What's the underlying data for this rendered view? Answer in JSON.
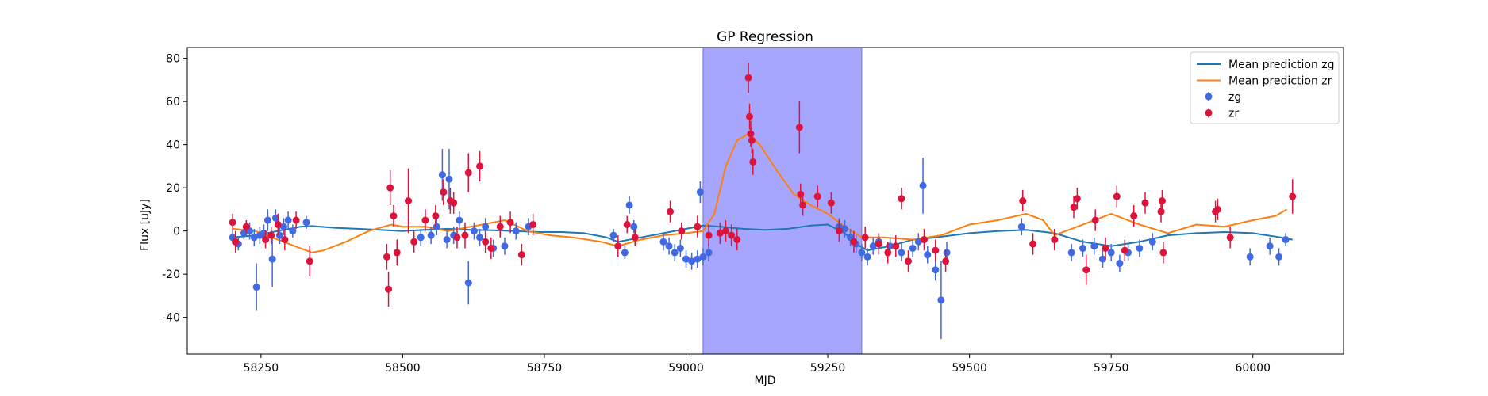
{
  "chart_data": {
    "type": "scatter",
    "title": "GP Regression",
    "xlabel": "MJD",
    "ylabel": "Flux [uJy]",
    "xlim": [
      58120,
      60160
    ],
    "ylim": [
      -57,
      85
    ],
    "xticks": [
      58250,
      58500,
      58750,
      59000,
      59250,
      59500,
      59750,
      60000
    ],
    "yticks": [
      -40,
      -20,
      0,
      20,
      40,
      60,
      80
    ],
    "grid": false,
    "legend_position": "top-right",
    "shaded_region": {
      "x_start": 59030,
      "x_end": 59310,
      "color": "#a6a6ff"
    },
    "colors": {
      "zg_line": "#1f77b4",
      "zr_line": "#ff7f0e",
      "zg_points": "#4169e1",
      "zr_points": "#dc143c"
    },
    "legend": [
      {
        "label": "Mean prediction zg",
        "kind": "line",
        "color": "#1f77b4"
      },
      {
        "label": "Mean prediction zr",
        "kind": "line",
        "color": "#ff7f0e"
      },
      {
        "label": "zg",
        "kind": "point",
        "color": "#4169e1"
      },
      {
        "label": "zr",
        "kind": "point",
        "color": "#dc143c"
      }
    ],
    "series": [
      {
        "name": "Mean prediction zg",
        "type": "line",
        "x": [
          58200,
          58240,
          58280,
          58320,
          58340,
          58380,
          58420,
          58460,
          58500,
          58540,
          58580,
          58620,
          58660,
          58700,
          58740,
          58780,
          58820,
          58860,
          58880,
          58920,
          58960,
          59000,
          59030,
          59060,
          59100,
          59140,
          59180,
          59220,
          59250,
          59280,
          59300,
          59320,
          59360,
          59400,
          59440,
          59470,
          59500,
          59550,
          59600,
          59650,
          59700,
          59750,
          59800,
          59850,
          59900,
          59950,
          60000,
          60050,
          60070
        ],
        "y": [
          -3,
          -2,
          0,
          2,
          2.3,
          1.5,
          1,
          0.5,
          0,
          0.5,
          1,
          0.5,
          0.3,
          0,
          -0.5,
          -0.5,
          -1,
          -3,
          -5,
          -3,
          -1,
          1,
          2.5,
          2,
          1,
          0.5,
          1,
          2.5,
          3,
          -1,
          -6,
          -9,
          -7,
          -4,
          -3,
          -2,
          -1,
          0,
          0.5,
          -1,
          -5,
          -7,
          -5,
          -2,
          -1,
          -0.5,
          -1,
          -3,
          -4
        ],
        "error_bars": false
      },
      {
        "name": "Mean prediction zr",
        "type": "line",
        "x": [
          58200,
          58240,
          58280,
          58320,
          58340,
          58360,
          58400,
          58440,
          58480,
          58500,
          58540,
          58580,
          58620,
          58660,
          58680,
          58720,
          58760,
          58800,
          58850,
          58880,
          58920,
          58960,
          59000,
          59030,
          59050,
          59070,
          59090,
          59110,
          59130,
          59160,
          59190,
          59220,
          59250,
          59280,
          59310,
          59350,
          59400,
          59450,
          59500,
          59550,
          59600,
          59630,
          59650,
          59700,
          59750,
          59800,
          59850,
          59900,
          59950,
          60000,
          60040,
          60060
        ],
        "y": [
          1,
          0,
          -4,
          -8,
          -10,
          -9,
          -5,
          0,
          3,
          2,
          2,
          0,
          2,
          4,
          5,
          0,
          -2,
          -3,
          -5,
          -7,
          -4,
          -2,
          -1,
          0,
          8,
          30,
          42,
          45,
          40,
          28,
          17,
          12,
          8,
          2,
          -3,
          -3,
          -4,
          -2,
          3,
          5,
          8,
          5,
          -2,
          3,
          8,
          3,
          -1,
          3,
          2,
          5,
          7,
          10
        ],
        "error_bars": false
      },
      {
        "name": "zg",
        "type": "scatter",
        "x": [
          58200,
          58210,
          58220,
          58230,
          58238,
          58242,
          58248,
          58255,
          58262,
          58270,
          58276,
          58283,
          58290,
          58298,
          58306,
          58330,
          58532,
          58550,
          58560,
          58570,
          58578,
          58582,
          58590,
          58600,
          58616,
          58626,
          58636,
          58646,
          58660,
          58680,
          58700,
          58722,
          58872,
          58892,
          58900,
          58908,
          58960,
          58970,
          58980,
          58990,
          59000,
          59010,
          59020,
          59025,
          59030,
          59040,
          59270,
          59280,
          59290,
          59300,
          59310,
          59320,
          59330,
          59340,
          59360,
          59380,
          59400,
          59410,
          59418,
          59426,
          59440,
          59450,
          59460,
          59592,
          59680,
          59700,
          59720,
          59735,
          59750,
          59765,
          59780,
          59800,
          59823,
          59995,
          60030,
          60046,
          60058
        ],
        "y": [
          -3,
          -6,
          -1,
          0,
          -3,
          -26,
          -2,
          -1,
          5,
          -13,
          6,
          -2,
          2,
          5,
          0,
          4,
          -3,
          -2,
          2,
          26,
          -4,
          24,
          -2,
          5,
          -24,
          0,
          -3,
          2,
          -8,
          -7,
          0,
          2,
          -2,
          -10,
          12,
          2,
          -5,
          -7,
          -10,
          -8,
          -13,
          -14,
          -13,
          18,
          -12,
          -10,
          2,
          1,
          -3,
          -6,
          -10,
          -12,
          -7,
          -5,
          -7,
          -10,
          -8,
          -5,
          21,
          -11,
          -18,
          -32,
          -10,
          2,
          -10,
          -8,
          -7,
          -13,
          -10,
          -15,
          -10,
          -8,
          -5,
          -12,
          -7,
          -12,
          -4
        ],
        "yerr": [
          3,
          3,
          3,
          4,
          4,
          11,
          4,
          4,
          5,
          13,
          4,
          4,
          4,
          4,
          3,
          3,
          4,
          4,
          4,
          12,
          4,
          14,
          4,
          4,
          10,
          4,
          4,
          4,
          4,
          4,
          4,
          4,
          3,
          3,
          4,
          3,
          4,
          4,
          4,
          4,
          4,
          4,
          4,
          5,
          4,
          4,
          4,
          4,
          4,
          4,
          4,
          4,
          4,
          4,
          4,
          4,
          4,
          4,
          13,
          4,
          5,
          18,
          5,
          4,
          4,
          4,
          4,
          4,
          4,
          4,
          4,
          4,
          4,
          4,
          4,
          4,
          3
        ],
        "error_bars": true
      },
      {
        "name": "zr",
        "type": "scatter",
        "x": [
          58200,
          58205,
          58224,
          58258,
          58268,
          58280,
          58292,
          58312,
          58336,
          58472,
          58475,
          58478,
          58484,
          58490,
          58510,
          58520,
          58540,
          58558,
          58572,
          58584,
          58590,
          58596,
          58610,
          58616,
          58636,
          58646,
          58656,
          58672,
          58690,
          58710,
          58730,
          58880,
          58896,
          58910,
          58972,
          58992,
          59020,
          59040,
          59060,
          59070,
          59080,
          59090,
          59110,
          59112,
          59114,
          59116,
          59118,
          59200,
          59202,
          59206,
          59232,
          59256,
          59270,
          59296,
          59316,
          59340,
          59356,
          59370,
          59380,
          59392,
          59420,
          59440,
          59458,
          59594,
          59612,
          59650,
          59684,
          59690,
          59706,
          59722,
          59740,
          59760,
          59774,
          59790,
          59810,
          59838,
          59840,
          59842,
          59934,
          59938,
          59960,
          60070
        ],
        "y": [
          4,
          -5,
          2,
          -4,
          -2,
          3,
          -4,
          5,
          -14,
          -12,
          -27,
          20,
          7,
          -10,
          14,
          -5,
          5,
          7,
          18,
          14,
          13,
          -3,
          -2,
          27,
          30,
          -5,
          -8,
          2,
          4,
          -11,
          3,
          -7,
          3,
          -3,
          9,
          0,
          2,
          -2,
          -1,
          0,
          -2,
          -4,
          71,
          53,
          45,
          42,
          32,
          48,
          17,
          12,
          16,
          13,
          0,
          -5,
          -3,
          -6,
          -10,
          -7,
          15,
          -14,
          -4,
          -9,
          -14,
          14,
          -6,
          -4,
          11,
          15,
          -18,
          5,
          -8,
          16,
          -9,
          7,
          13,
          9,
          14,
          -10,
          9,
          10,
          -3,
          16
        ],
        "yerr": [
          4,
          5,
          3,
          4,
          4,
          5,
          5,
          4,
          7,
          6,
          8,
          8,
          5,
          6,
          15,
          5,
          5,
          5,
          6,
          6,
          5,
          5,
          6,
          9,
          7,
          5,
          5,
          5,
          5,
          5,
          5,
          5,
          4,
          4,
          5,
          4,
          5,
          5,
          5,
          5,
          5,
          5,
          7,
          6,
          6,
          6,
          6,
          12,
          5,
          5,
          5,
          5,
          5,
          5,
          5,
          5,
          5,
          5,
          5,
          5,
          5,
          5,
          5,
          5,
          5,
          5,
          5,
          5,
          7,
          5,
          5,
          5,
          5,
          5,
          5,
          5,
          5,
          5,
          5,
          5,
          5,
          8
        ],
        "error_bars": true
      }
    ]
  }
}
